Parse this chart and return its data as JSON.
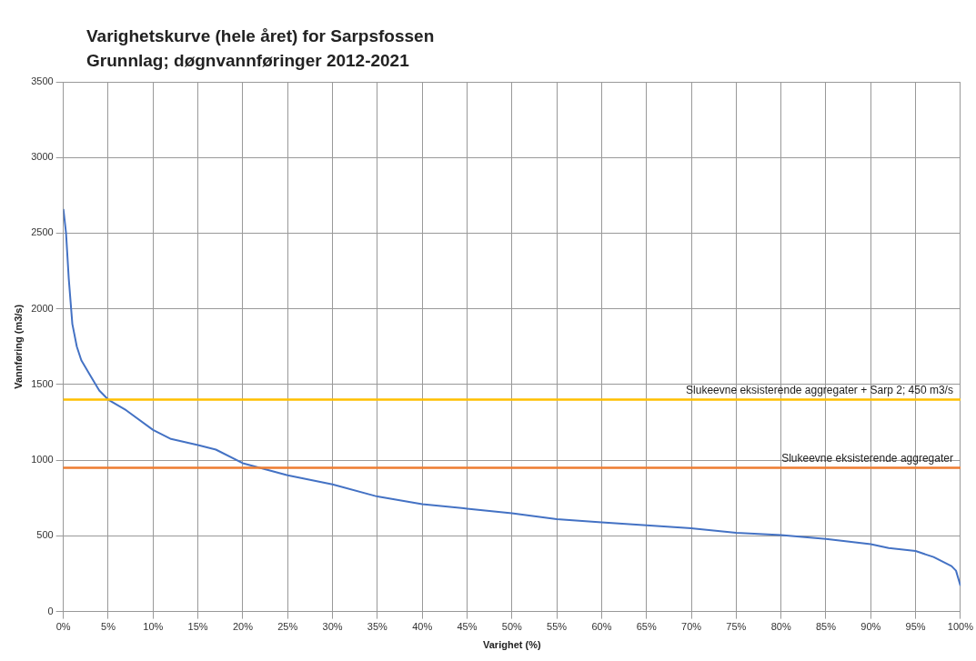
{
  "chart_data": {
    "type": "line",
    "title": "Varighetskurve (hele året) for Sarpsfossen",
    "subtitle": "Grunnlag; døgnvannføringer 2012-2021",
    "xlabel": "Varighet (%)",
    "ylabel": "Vannføring (m3/s)",
    "series": [
      {
        "color": "#4472c4",
        "x": [
          0,
          0.3,
          0.6,
          1,
          1.5,
          2,
          3,
          4,
          5,
          7,
          10,
          12,
          15,
          17,
          20,
          25,
          30,
          35,
          40,
          45,
          50,
          55,
          60,
          65,
          70,
          75,
          80,
          85,
          90,
          92,
          95,
          97,
          99,
          99.5,
          100
        ],
        "values": [
          2660,
          2500,
          2200,
          1900,
          1750,
          1660,
          1560,
          1460,
          1400,
          1330,
          1200,
          1140,
          1100,
          1070,
          980,
          900,
          840,
          760,
          710,
          680,
          650,
          610,
          590,
          570,
          550,
          520,
          505,
          480,
          445,
          420,
          400,
          360,
          300,
          270,
          170
        ]
      }
    ],
    "xlim": [
      0,
      100
    ],
    "xticks": [
      {
        "value": 0,
        "label": "0%"
      },
      {
        "value": 5,
        "label": "5%"
      },
      {
        "value": 10,
        "label": "10%"
      },
      {
        "value": 15,
        "label": "15%"
      },
      {
        "value": 20,
        "label": "20%"
      },
      {
        "value": 25,
        "label": "25%"
      },
      {
        "value": 30,
        "label": "30%"
      },
      {
        "value": 35,
        "label": "35%"
      },
      {
        "value": 40,
        "label": "40%"
      },
      {
        "value": 45,
        "label": "45%"
      },
      {
        "value": 50,
        "label": "50%"
      },
      {
        "value": 55,
        "label": "55%"
      },
      {
        "value": 60,
        "label": "60%"
      },
      {
        "value": 65,
        "label": "65%"
      },
      {
        "value": 70,
        "label": "70%"
      },
      {
        "value": 75,
        "label": "75%"
      },
      {
        "value": 80,
        "label": "80%"
      },
      {
        "value": 85,
        "label": "85%"
      },
      {
        "value": 90,
        "label": "90%"
      },
      {
        "value": 95,
        "label": "95%"
      },
      {
        "value": 100,
        "label": "100%"
      }
    ],
    "ylim": [
      0,
      3500
    ],
    "yticks": [
      0,
      500,
      1000,
      1500,
      2000,
      2500,
      3000,
      3500
    ],
    "ref_lines": [
      {
        "axis": "y",
        "value": 1400,
        "label": "Slukeevne eksisterende aggregater + Sarp 2; 450 m3/s",
        "color": "#ffc000"
      },
      {
        "axis": "y",
        "value": 950,
        "label": "Slukeevne eksisterende aggregater",
        "color": "#ed7d31"
      }
    ],
    "grid": true,
    "legend": false,
    "marker": "none",
    "line_style": "solid"
  }
}
